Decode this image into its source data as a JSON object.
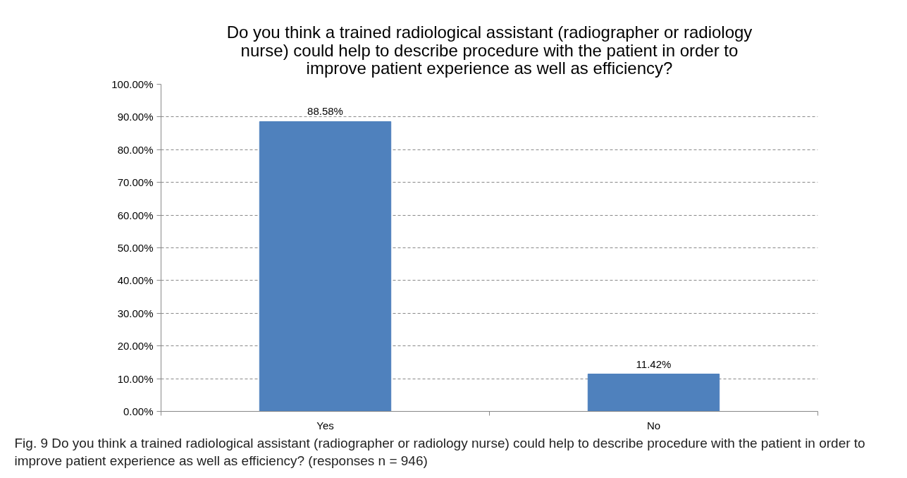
{
  "chart_data": {
    "type": "bar",
    "title": "Do you think a trained radiological assistant (radiographer or radiology nurse) could help to describe procedure with the patient in order to improve patient experience as well as efficiency?",
    "categories": [
      "Yes",
      "No"
    ],
    "values": [
      88.58,
      11.42
    ],
    "color": "#4f81bd",
    "value_labels": [
      "88.58%",
      "11.42%"
    ],
    "ylim": [
      0,
      100
    ],
    "yticks": [
      {
        "value": 0,
        "label": "0.00%"
      },
      {
        "value": 10,
        "label": "10.00%"
      },
      {
        "value": 20,
        "label": "20.00%"
      },
      {
        "value": 30,
        "label": "30.00%"
      },
      {
        "value": 40,
        "label": "40.00%"
      },
      {
        "value": 50,
        "label": "50.00%"
      },
      {
        "value": 60,
        "label": "60.00%"
      },
      {
        "value": 70,
        "label": "70.00%"
      },
      {
        "value": 80,
        "label": "80.00%"
      },
      {
        "value": 90,
        "label": "90.00%"
      },
      {
        "value": 100,
        "label": "100.00%"
      }
    ],
    "grid": "y",
    "annotations": [
      "Fig. 9 Do you think a trained radiological assistant (radiographer or radiology nurse) could help to describe procedure with the patient in order to improve patient experience as well as efficiency? (responses n = 946)"
    ]
  }
}
